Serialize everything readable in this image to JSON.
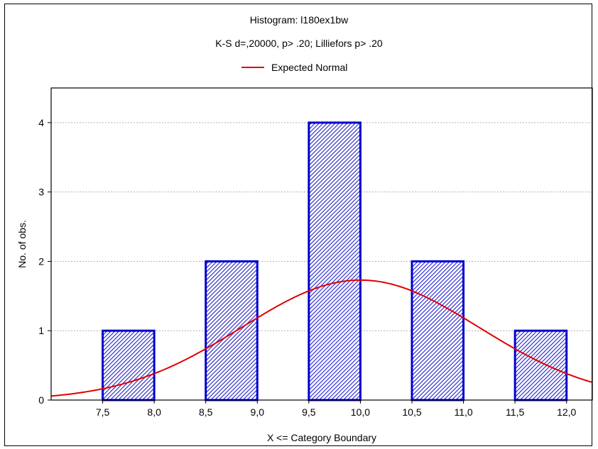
{
  "chart_data": {
    "type": "bar",
    "title": "Histogram: l180ex1bw",
    "subtitle": "K-S d=,20000, p> .20; Lilliefors p> .20",
    "xlabel": "X <= Category Boundary",
    "ylabel": "No. of obs.",
    "x_ticks": [
      "7,5",
      "8,0",
      "8,5",
      "9,0",
      "9,5",
      "10,0",
      "10,5",
      "11,0",
      "11,5",
      "12,0"
    ],
    "y_ticks": [
      "0",
      "1",
      "2",
      "3",
      "4"
    ],
    "xlim": [
      7.0,
      12.25
    ],
    "ylim": [
      0,
      4.5
    ],
    "bins": [
      {
        "from": 7.5,
        "to": 8.0,
        "count": 1
      },
      {
        "from": 8.5,
        "to": 9.0,
        "count": 2
      },
      {
        "from": 9.5,
        "to": 10.0,
        "count": 4
      },
      {
        "from": 10.5,
        "to": 11.0,
        "count": 2
      },
      {
        "from": 11.5,
        "to": 12.0,
        "count": 1
      }
    ],
    "expected_normal": {
      "name": "Expected Normal",
      "mean": 10.0,
      "sd": 1.15,
      "peak": 1.73,
      "color": "#e00000"
    },
    "bar_color": "#0000cc",
    "grid": true,
    "legend": "top-center"
  }
}
